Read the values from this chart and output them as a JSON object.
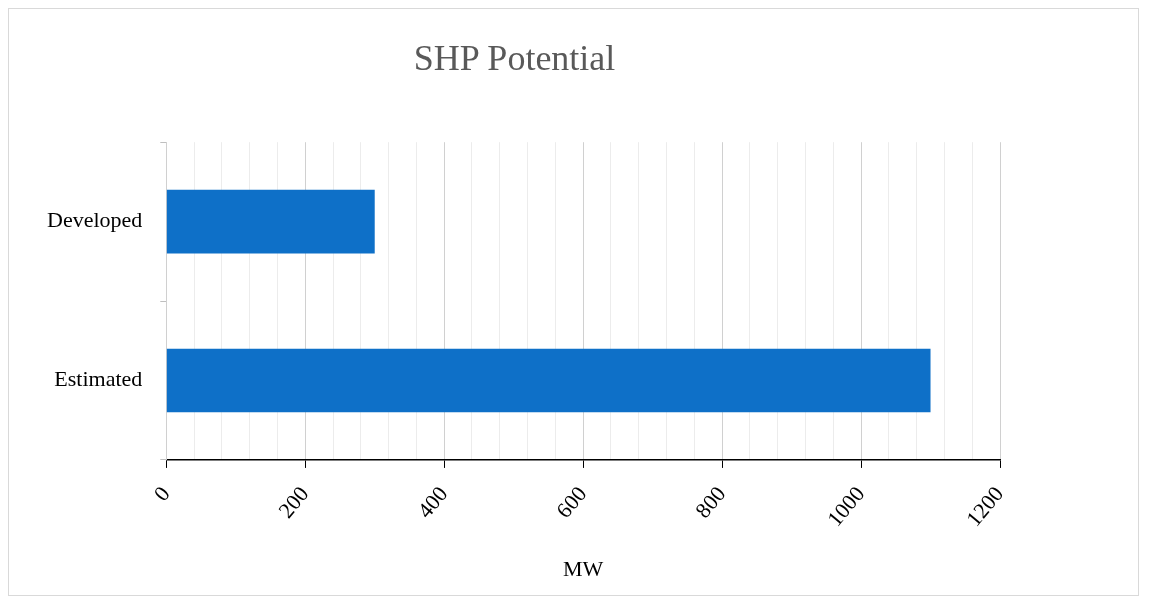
{
  "chart_data": {
    "type": "bar",
    "orientation": "horizontal",
    "title": "SHP Potential",
    "xlabel": "MW",
    "categories": [
      "Developed",
      "Estimated"
    ],
    "values": [
      300,
      1100
    ],
    "color": "#0e70c8",
    "xlim": [
      0,
      1200
    ],
    "xticks": [
      0,
      {
        "value": 40,
        "label": null
      },
      {
        "value": 80,
        "label": null
      },
      {
        "value": 120,
        "label": null
      },
      {
        "value": 160,
        "label": null
      },
      200,
      {
        "value": 240,
        "label": null
      },
      {
        "value": 280,
        "label": null
      },
      {
        "value": 320,
        "label": null
      },
      {
        "value": 360,
        "label": null
      },
      400,
      {
        "value": 440,
        "label": null
      },
      {
        "value": 480,
        "label": null
      },
      {
        "value": 520,
        "label": null
      },
      {
        "value": 560,
        "label": null
      },
      600,
      {
        "value": 640,
        "label": null
      },
      {
        "value": 680,
        "label": null
      },
      {
        "value": 720,
        "label": null
      },
      {
        "value": 760,
        "label": null
      },
      800,
      {
        "value": 840,
        "label": null
      },
      {
        "value": 880,
        "label": null
      },
      {
        "value": 920,
        "label": null
      },
      {
        "value": 960,
        "label": null
      },
      1000,
      {
        "value": 1040,
        "label": null
      },
      {
        "value": 1080,
        "label": null
      },
      {
        "value": 1120,
        "label": null
      },
      {
        "value": 1160,
        "label": null
      },
      1200
    ],
    "grid": "x",
    "legend": false
  }
}
